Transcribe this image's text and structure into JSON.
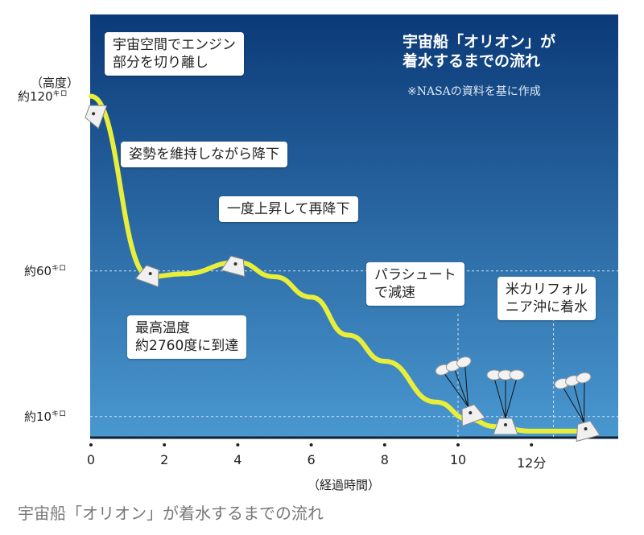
{
  "chart_data": {
    "type": "line",
    "title": "宇宙船「オリオン」が\n着水するまでの流れ",
    "source_note": "※NASAの資料を基に作成",
    "xlabel": "（経過時間）",
    "ylabel": "（高度）",
    "x_ticks": [
      "0",
      "2",
      "4",
      "6",
      "8",
      "10",
      "12分"
    ],
    "x_tick_values": [
      0,
      2,
      4,
      6,
      8,
      10,
      12
    ],
    "y_ticks": [
      {
        "value": 120,
        "label": "約120",
        "unit": "キロ"
      },
      {
        "value": 60,
        "label": "約60",
        "unit": "キロ"
      },
      {
        "value": 10,
        "label": "約10",
        "unit": "キロ"
      }
    ],
    "xlim": [
      0,
      14.4
    ],
    "ylim": [
      2.5,
      130
    ],
    "series": [
      {
        "name": "高度",
        "x": [
          0,
          1.6,
          2.5,
          4.0,
          5.0,
          6.0,
          7.0,
          8.0,
          9.4,
          10.3,
          11.0,
          12.0,
          13.3
        ],
        "y": [
          120,
          58,
          59,
          63,
          58,
          51,
          38,
          29,
          15,
          9,
          6.6,
          5,
          5
        ]
      }
    ],
    "vertical_markers": [
      10,
      12.6
    ],
    "annotations": [
      {
        "text": "宇宙空間でエンジン\n部分を切り離し"
      },
      {
        "text": "姿勢を維持しながら降下"
      },
      {
        "text": "一度上昇して再降下"
      },
      {
        "text": "最高温度\n約2760度に到達"
      },
      {
        "text": "パラシュート\nで減速"
      },
      {
        "text": "米カリフォル\nニア沖に着水"
      }
    ],
    "colors": {
      "bg_top": "#0b3a78",
      "bg_bottom": "#4a98d0",
      "line": "#e8ee3a"
    }
  },
  "caption": "宇宙船「オリオン」が着水するまでの流れ"
}
